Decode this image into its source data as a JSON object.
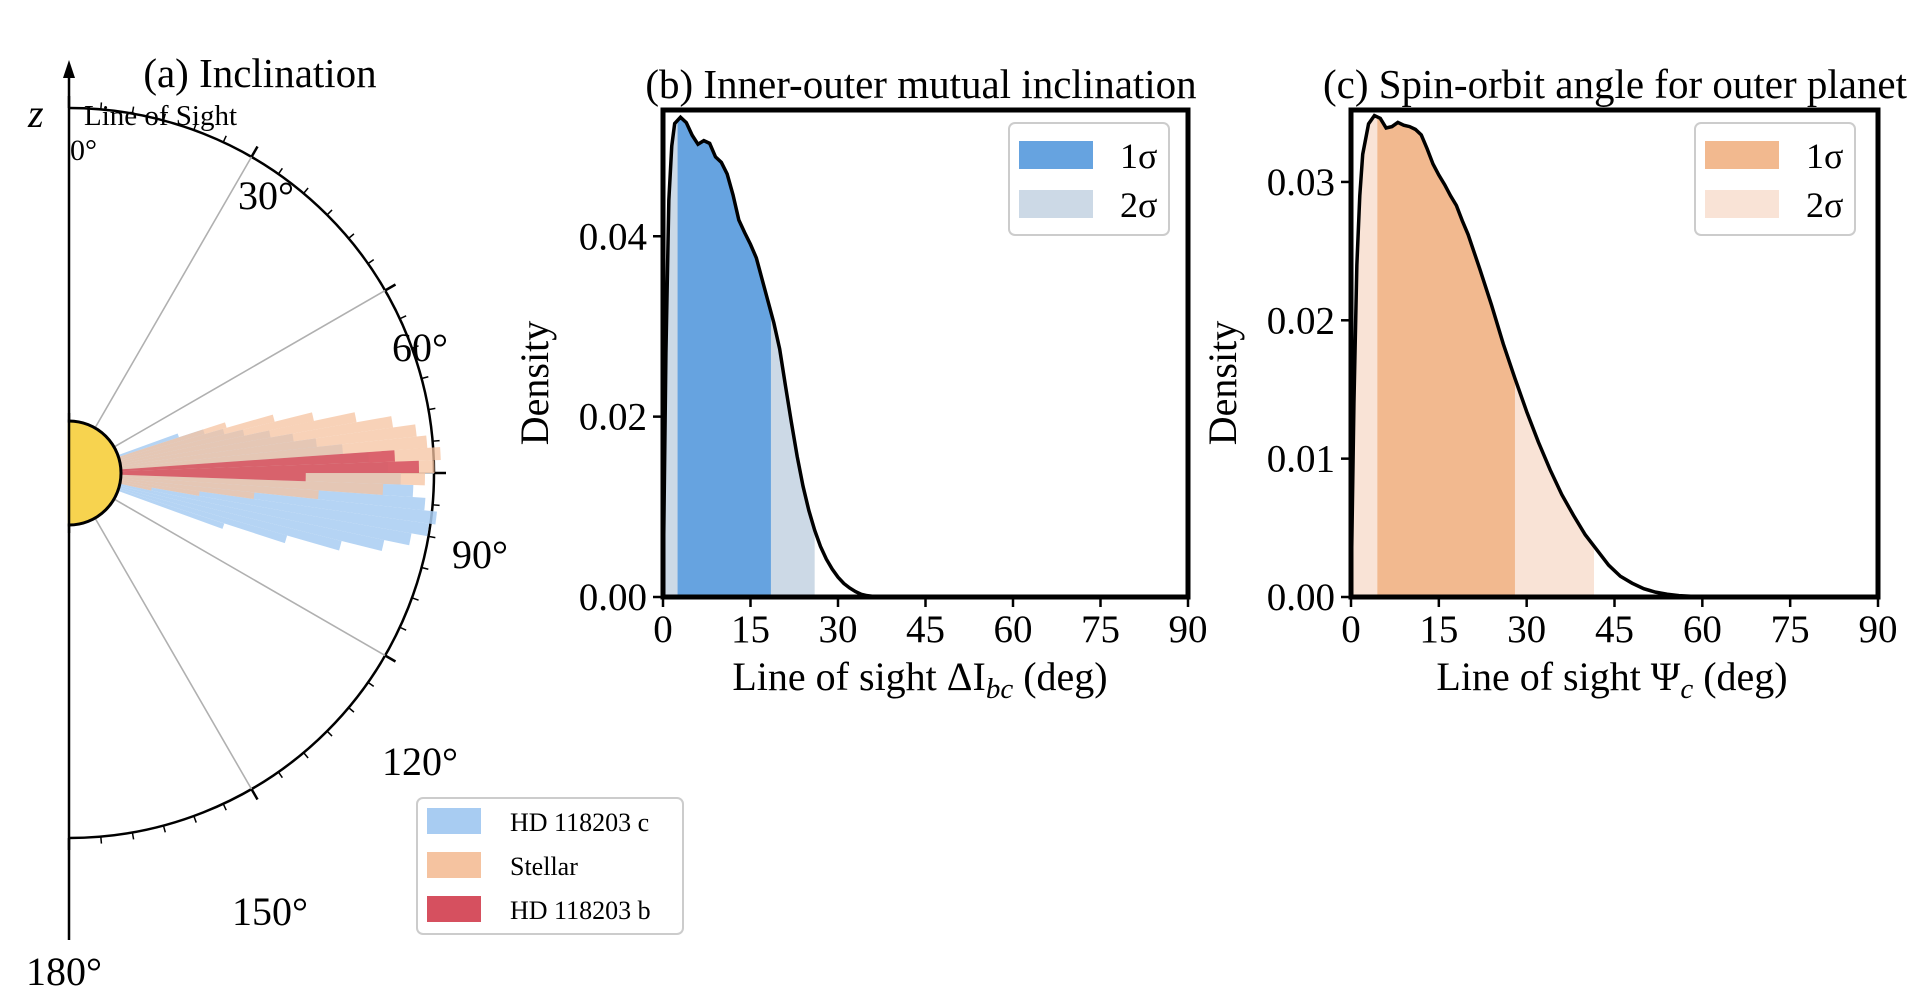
{
  "colors": {
    "blue_1sigma": "#66a3e0",
    "blue_2sigma": "#ccd9e6",
    "orange_1sigma": "#f2b98f",
    "orange_2sigma": "#f9e3d6",
    "planet_c": "#a8ccf2",
    "stellar": "#f5c3a0",
    "planet_b": "#d6505f",
    "star": "#f7d34f",
    "curve": "#000000"
  },
  "chart_data": [
    {
      "type": "polar-histogram",
      "title": "(a) Inclination",
      "axis_label": "z",
      "direction_label": "Line of Sight",
      "angle_ticks": [
        "0°",
        "30°",
        "60°",
        "90°",
        "120°",
        "150°",
        "180°"
      ],
      "angle_tick_values": [
        0,
        30,
        60,
        90,
        120,
        150,
        180
      ],
      "angle_range": [
        0,
        180
      ],
      "legend": [
        "HD 118203 c",
        "Stellar",
        "HD 118203 b"
      ],
      "series": [
        {
          "name": "HD 118203 c",
          "bins_deg": [
            70,
            72,
            74,
            76,
            78,
            80,
            82,
            84,
            86,
            88,
            90,
            92,
            94,
            96,
            98,
            100,
            102,
            104,
            106,
            108
          ],
          "values": [
            0.2,
            0.28,
            0.34,
            0.4,
            0.48,
            0.55,
            0.62,
            0.7,
            0.78,
            0.84,
            0.88,
            0.92,
            0.96,
            1.0,
            0.98,
            0.93,
            0.85,
            0.72,
            0.55,
            0.35
          ]
        },
        {
          "name": "Stellar",
          "bins_deg": [
            72,
            74,
            76,
            78,
            80,
            82,
            84,
            86,
            88,
            90,
            92,
            94,
            96,
            98,
            100
          ],
          "values": [
            0.35,
            0.5,
            0.62,
            0.75,
            0.86,
            0.93,
            0.96,
            1.0,
            0.98,
            0.95,
            0.82,
            0.62,
            0.42,
            0.25,
            0.1
          ]
        },
        {
          "name": "HD 118203 b",
          "bins_deg": [
            86,
            88,
            90
          ],
          "values": [
            0.92,
            1.0,
            0.62
          ]
        }
      ]
    },
    {
      "type": "kde",
      "title": "(b) Inner-outer mutual inclination",
      "xlabel_prefix": "Line of sight ΔI",
      "xlabel_sub": "bc",
      "xlabel_suffix": " (deg)",
      "ylabel": "Density",
      "xlim": [
        0,
        90
      ],
      "ylim": [
        0,
        0.054
      ],
      "xticks": [
        0,
        15,
        30,
        45,
        60,
        75,
        90
      ],
      "xtick_labels": [
        "0",
        "15",
        "30",
        "45",
        "60",
        "75",
        "90"
      ],
      "yticks": [
        0.0,
        0.02,
        0.04
      ],
      "ytick_labels": [
        "0.00",
        "0.02",
        "0.04"
      ],
      "one_sigma": [
        2.5,
        18.5
      ],
      "two_sigma": [
        0,
        26
      ],
      "legend": [
        "1σ",
        "2σ"
      ],
      "x": [
        0,
        0.5,
        1,
        1.5,
        2,
        3,
        4,
        5,
        6,
        7,
        8,
        9,
        10,
        11,
        12,
        13,
        14,
        15,
        16,
        17,
        18,
        19,
        20,
        21,
        22,
        23,
        24,
        25,
        26,
        27,
        28,
        29,
        30,
        31,
        32,
        33,
        34,
        35,
        36,
        37,
        38,
        39,
        40,
        45,
        60,
        90
      ],
      "y": [
        0.0,
        0.027,
        0.044,
        0.05,
        0.0525,
        0.0532,
        0.0526,
        0.0512,
        0.0502,
        0.0506,
        0.0503,
        0.0488,
        0.0482,
        0.0469,
        0.0446,
        0.0418,
        0.0404,
        0.0391,
        0.0376,
        0.0352,
        0.0328,
        0.0304,
        0.0275,
        0.0234,
        0.0194,
        0.0156,
        0.0123,
        0.0096,
        0.0074,
        0.0056,
        0.0042,
        0.0031,
        0.0022,
        0.0015,
        0.001,
        0.0006,
        0.0003,
        0.00015,
        7e-05,
        3e-05,
        1e-05,
        0.0,
        0.0,
        0.0,
        0.0,
        0.0
      ]
    },
    {
      "type": "kde",
      "title": "(c) Spin-orbit angle for outer planet",
      "xlabel_prefix": "Line of sight Ψ",
      "xlabel_sub": "c",
      "xlabel_suffix": " (deg)",
      "ylabel": "Density",
      "xlim": [
        0,
        90
      ],
      "ylim": [
        0,
        0.0352
      ],
      "xticks": [
        0,
        15,
        30,
        45,
        60,
        75,
        90
      ],
      "xtick_labels": [
        "0",
        "15",
        "30",
        "45",
        "60",
        "75",
        "90"
      ],
      "yticks": [
        0.0,
        0.01,
        0.02,
        0.03
      ],
      "ytick_labels": [
        "0.00",
        "0.01",
        "0.02",
        "0.03"
      ],
      "one_sigma": [
        4.5,
        28
      ],
      "two_sigma": [
        0,
        41.5
      ],
      "legend": [
        "1σ",
        "2σ"
      ],
      "x": [
        0,
        0.5,
        1,
        1.5,
        2,
        3,
        4,
        5,
        6,
        7,
        8,
        9,
        10,
        11,
        12,
        13,
        14,
        15,
        16,
        17,
        18,
        19,
        20,
        22,
        24,
        26,
        28,
        30,
        32,
        34,
        36,
        38,
        40,
        42,
        44,
        46,
        48,
        50,
        52,
        54,
        56,
        58,
        60,
        65,
        90
      ],
      "y": [
        0.0,
        0.014,
        0.024,
        0.029,
        0.032,
        0.0342,
        0.0348,
        0.0346,
        0.0339,
        0.034,
        0.0343,
        0.0341,
        0.034,
        0.0338,
        0.0334,
        0.0324,
        0.0313,
        0.0305,
        0.0298,
        0.029,
        0.0283,
        0.0272,
        0.0262,
        0.0237,
        0.0211,
        0.0183,
        0.0158,
        0.0134,
        0.0112,
        0.0092,
        0.0074,
        0.0059,
        0.0045,
        0.0034,
        0.0023,
        0.0015,
        0.001,
        0.0006,
        0.00035,
        0.0002,
        0.0001,
        5e-05,
        2e-05,
        0.0,
        0.0
      ]
    }
  ]
}
